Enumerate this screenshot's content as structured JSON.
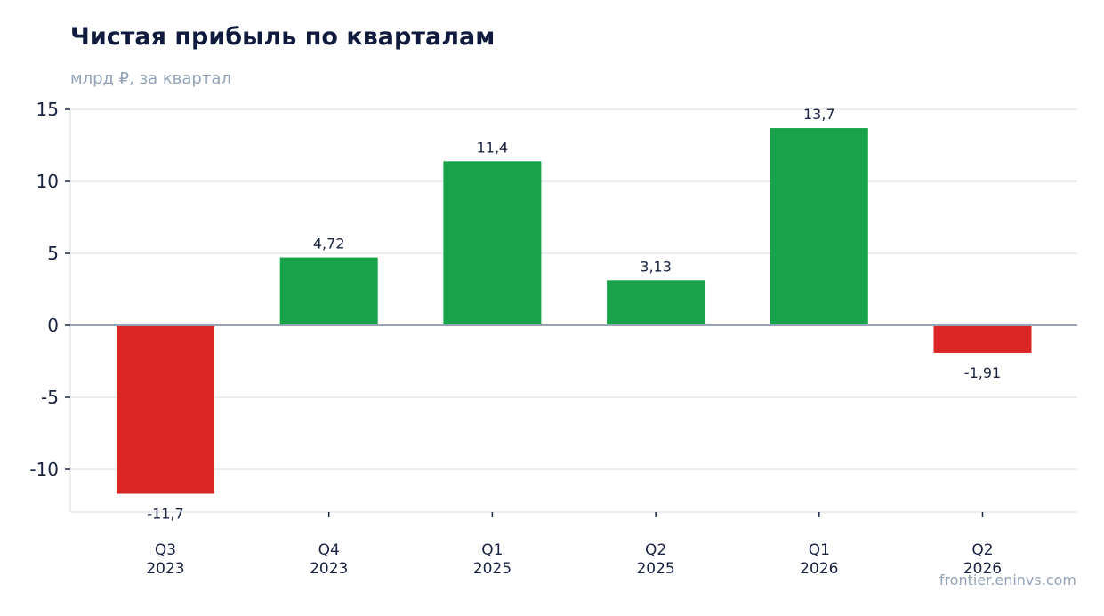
{
  "header": {
    "title": "Чистая прибыль по кварталам",
    "subtitle": "млрд ₽, за квартал"
  },
  "footer": {
    "source": "frontier.eninvs.com"
  },
  "colors": {
    "positive": "#18a34a",
    "negative": "#dc2626",
    "grid": "#e5e7eb",
    "zero_line": "#94a3b8"
  },
  "chart_data": {
    "type": "bar",
    "categories": [
      [
        "Q3",
        "2023"
      ],
      [
        "Q4",
        "2023"
      ],
      [
        "Q1",
        "2025"
      ],
      [
        "Q2",
        "2025"
      ],
      [
        "Q1",
        "2026"
      ],
      [
        "Q2",
        "2026"
      ]
    ],
    "values": [
      -11.7,
      4.72,
      11.4,
      3.13,
      13.7,
      -1.91
    ],
    "value_labels": [
      "-11,7",
      "4,72",
      "11,4",
      "3,13",
      "13,7",
      "-1,91"
    ],
    "yticks": [
      15,
      10,
      5,
      0,
      -5,
      -10
    ],
    "ytick_labels": [
      "15",
      "10",
      "5",
      "0",
      "-5",
      "-10"
    ],
    "ylim": [
      -13,
      15
    ],
    "grid": true,
    "legend": "none"
  }
}
